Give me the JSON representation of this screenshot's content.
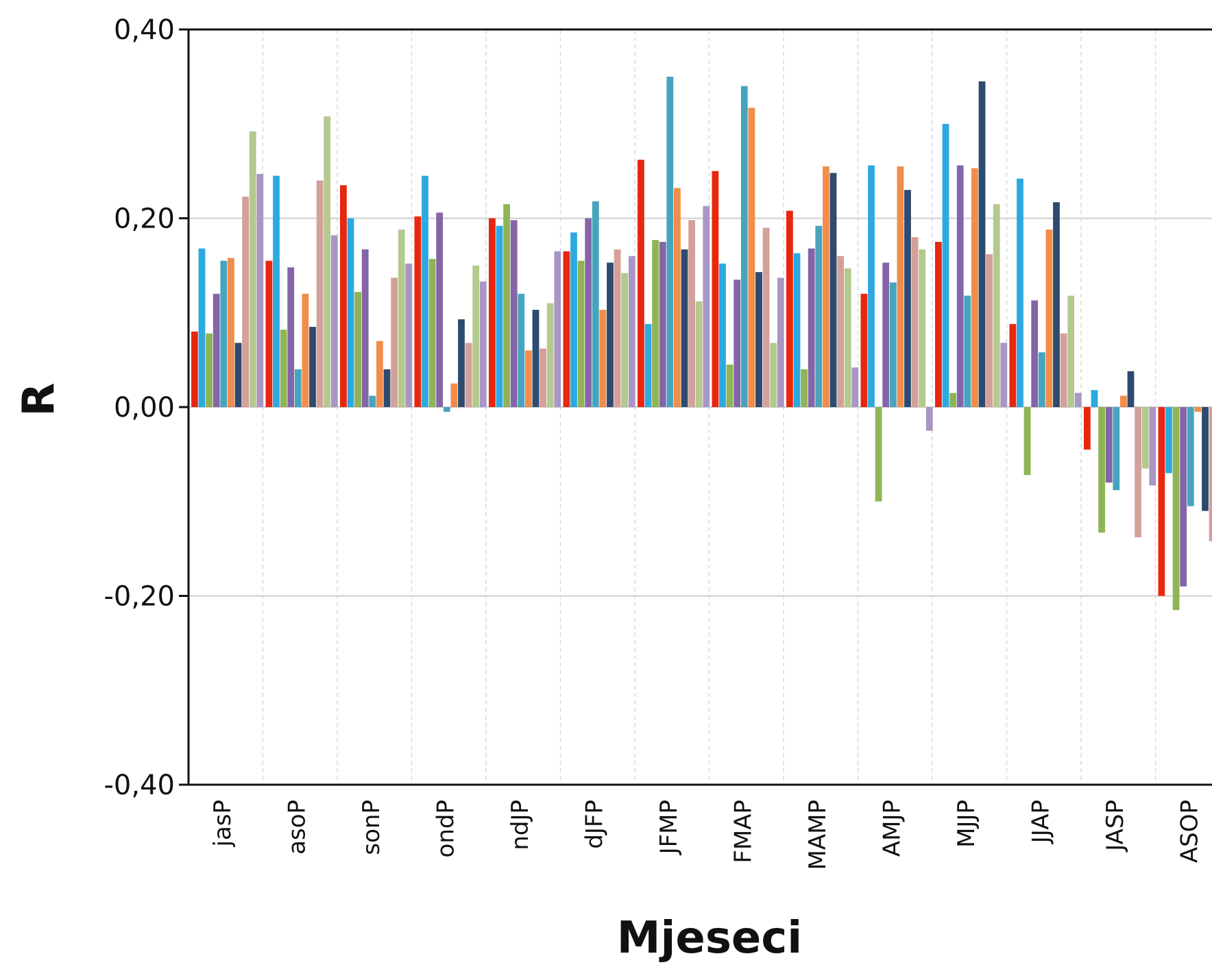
{
  "chart_data": {
    "type": "bar",
    "xlabel": "Mjeseci",
    "ylabel": "R",
    "ylim": [
      -0.4,
      0.4
    ],
    "yticks": [
      0.4,
      0.2,
      0.0,
      -0.2,
      -0.4
    ],
    "ytick_labels": [
      "0,40",
      "0,20",
      "0,00",
      "-0,20",
      "-0,40"
    ],
    "grid": "horizontal",
    "categories": [
      "jasP",
      "asoP",
      "sonP",
      "ondP",
      "ndJP",
      "dJFP",
      "JFMP",
      "FMAP",
      "MAMP",
      "AMJP",
      "MJJP",
      "JJAP",
      "JASP",
      "ASOP"
    ],
    "colors": [
      "#E8270E",
      "#2DA9E1",
      "#8FB455",
      "#8465A7",
      "#47A4BE",
      "#F28D49",
      "#2E4A6F",
      "#D4A09A",
      "#B4C98E",
      "#A896C4"
    ],
    "series": [
      {
        "values": [
          0.08,
          0.155,
          0.235,
          0.202,
          0.2,
          0.165,
          0.262,
          0.25,
          0.208,
          0.12,
          0.175,
          0.088,
          -0.045,
          -0.2
        ]
      },
      {
        "values": [
          0.168,
          0.245,
          0.2,
          0.245,
          0.192,
          0.185,
          0.088,
          0.152,
          0.163,
          0.256,
          0.3,
          0.242,
          0.018,
          -0.07
        ]
      },
      {
        "values": [
          0.078,
          0.082,
          0.122,
          0.157,
          0.215,
          0.155,
          0.177,
          0.045,
          0.04,
          -0.1,
          0.015,
          -0.072,
          -0.133,
          -0.215
        ]
      },
      {
        "values": [
          0.12,
          0.148,
          0.167,
          0.206,
          0.198,
          0.2,
          0.175,
          0.135,
          0.168,
          0.153,
          0.256,
          0.113,
          -0.08,
          -0.19
        ]
      },
      {
        "values": [
          0.155,
          0.04,
          0.012,
          -0.005,
          0.12,
          0.218,
          0.35,
          0.34,
          0.192,
          0.132,
          0.118,
          0.058,
          -0.088,
          -0.105
        ]
      },
      {
        "values": [
          0.158,
          0.12,
          0.07,
          0.025,
          0.06,
          0.103,
          0.232,
          0.317,
          0.255,
          0.255,
          0.253,
          0.188,
          0.012,
          -0.005
        ]
      },
      {
        "values": [
          0.068,
          0.085,
          0.04,
          0.093,
          0.103,
          0.153,
          0.167,
          0.143,
          0.248,
          0.23,
          0.345,
          0.217,
          0.038,
          -0.11
        ]
      },
      {
        "values": [
          0.223,
          0.24,
          0.137,
          0.068,
          0.062,
          0.167,
          0.198,
          0.19,
          0.16,
          0.18,
          0.162,
          0.078,
          -0.138,
          -0.142
        ]
      },
      {
        "values": [
          0.292,
          0.308,
          0.188,
          0.15,
          0.11,
          0.142,
          0.112,
          0.068,
          0.147,
          0.167,
          0.215,
          0.118,
          -0.065,
          null
        ]
      },
      {
        "values": [
          0.247,
          0.182,
          0.152,
          0.133,
          0.165,
          0.16,
          0.213,
          0.137,
          0.042,
          -0.025,
          0.068,
          0.015,
          -0.083,
          null
        ]
      }
    ]
  }
}
